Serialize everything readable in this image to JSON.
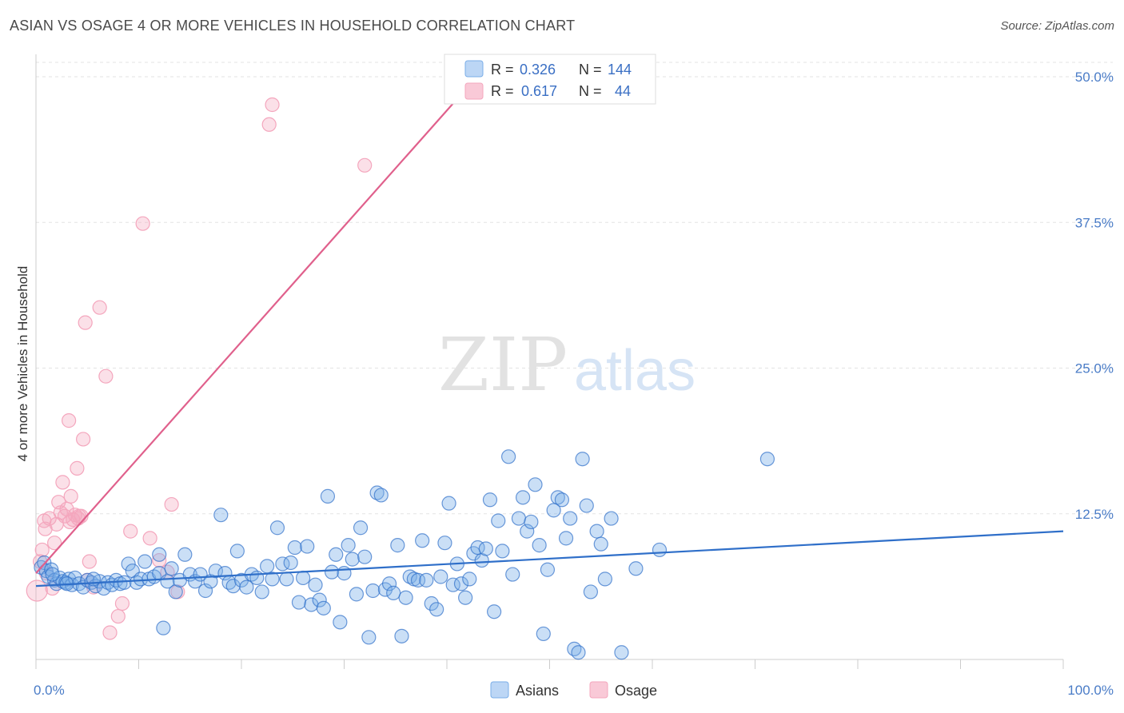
{
  "title": "ASIAN VS OSAGE 4 OR MORE VEHICLES IN HOUSEHOLD CORRELATION CHART",
  "source": "Source: ZipAtlas.com",
  "watermark": {
    "zip": "ZIP",
    "atlas": "atlas"
  },
  "colors": {
    "asians": "#7aaee8",
    "asians_line": "#2f6fc9",
    "osage": "#f4a6bd",
    "osage_line": "#e0608c",
    "grid": "#e3e3e3",
    "tick_text": "#4a7cc7"
  },
  "legend_top": {
    "rows": [
      {
        "r_label": "R =",
        "r_value": "0.326",
        "n_label": "N =",
        "n_value": "144"
      },
      {
        "r_label": "R =",
        "r_value": "0.617",
        "n_label": "N =",
        "n_value": "44"
      }
    ]
  },
  "legend_bottom": {
    "asians": "Asians",
    "osage": "Osage"
  },
  "chart_data": {
    "type": "scatter",
    "xlabel": "",
    "ylabel": "4 or more Vehicles in Household",
    "xlim": [
      0,
      100
    ],
    "ylim": [
      0,
      50
    ],
    "x_tick_labels": [
      "0.0%",
      "100.0%"
    ],
    "y_ticks": [
      12.5,
      25.0,
      37.5,
      50.0
    ],
    "y_tick_labels": [
      "12.5%",
      "25.0%",
      "37.5%",
      "50.0%"
    ],
    "grid": "horizontal dashed",
    "legend_position": "top-center",
    "series": [
      {
        "name": "Asians",
        "trend": {
          "x": [
            0,
            100
          ],
          "y": [
            6.3,
            11.0
          ]
        },
        "points": [
          [
            0.5,
            7.9
          ],
          [
            0.8,
            8.3
          ],
          [
            1.0,
            7.6
          ],
          [
            1.2,
            7.1
          ],
          [
            1.5,
            7.7
          ],
          [
            1.8,
            6.8
          ],
          [
            2.0,
            6.5
          ],
          [
            2.3,
            7.0
          ],
          [
            2.6,
            6.7
          ],
          [
            2.9,
            6.6
          ],
          [
            3.2,
            6.9
          ],
          [
            3.5,
            6.4
          ],
          [
            3.8,
            7.0
          ],
          [
            4.2,
            6.5
          ],
          [
            4.6,
            6.2
          ],
          [
            5.0,
            6.8
          ],
          [
            5.4,
            6.6
          ],
          [
            5.8,
            6.3
          ],
          [
            6.2,
            6.7
          ],
          [
            6.6,
            6.1
          ],
          [
            7.0,
            6.6
          ],
          [
            7.4,
            6.4
          ],
          [
            7.8,
            6.8
          ],
          [
            8.2,
            6.5
          ],
          [
            8.6,
            6.6
          ],
          [
            9.0,
            8.2
          ],
          [
            9.4,
            7.6
          ],
          [
            9.8,
            6.6
          ],
          [
            10.2,
            6.9
          ],
          [
            10.6,
            8.4
          ],
          [
            11.0,
            6.9
          ],
          [
            11.5,
            7.1
          ],
          [
            12.0,
            7.4
          ],
          [
            12.4,
            2.7
          ],
          [
            12.8,
            6.7
          ],
          [
            13.2,
            7.8
          ],
          [
            13.6,
            5.8
          ],
          [
            14.0,
            6.8
          ],
          [
            14.5,
            9.0
          ],
          [
            15.0,
            7.3
          ],
          [
            15.5,
            6.7
          ],
          [
            16.0,
            7.3
          ],
          [
            16.5,
            5.9
          ],
          [
            17.0,
            6.7
          ],
          [
            17.5,
            7.6
          ],
          [
            18.0,
            12.4
          ],
          [
            18.4,
            7.4
          ],
          [
            18.8,
            6.6
          ],
          [
            19.2,
            6.3
          ],
          [
            19.6,
            9.3
          ],
          [
            20.0,
            6.8
          ],
          [
            20.5,
            6.2
          ],
          [
            21.0,
            7.3
          ],
          [
            21.5,
            7.0
          ],
          [
            22.0,
            5.8
          ],
          [
            22.5,
            8.0
          ],
          [
            23.0,
            6.9
          ],
          [
            23.5,
            11.3
          ],
          [
            24.0,
            8.2
          ],
          [
            24.4,
            6.9
          ],
          [
            24.8,
            8.3
          ],
          [
            25.2,
            9.6
          ],
          [
            25.6,
            4.9
          ],
          [
            26.0,
            7.0
          ],
          [
            26.4,
            9.7
          ],
          [
            26.8,
            4.7
          ],
          [
            27.2,
            6.4
          ],
          [
            27.6,
            5.1
          ],
          [
            28.0,
            4.4
          ],
          [
            28.4,
            14.0
          ],
          [
            28.8,
            7.5
          ],
          [
            29.2,
            9.0
          ],
          [
            29.6,
            3.2
          ],
          [
            30.0,
            7.4
          ],
          [
            30.4,
            9.8
          ],
          [
            30.8,
            8.6
          ],
          [
            31.2,
            5.6
          ],
          [
            31.6,
            11.3
          ],
          [
            32.0,
            8.8
          ],
          [
            32.4,
            1.9
          ],
          [
            32.8,
            5.9
          ],
          [
            33.2,
            14.3
          ],
          [
            33.6,
            14.1
          ],
          [
            34.0,
            6.0
          ],
          [
            34.4,
            6.5
          ],
          [
            34.8,
            5.7
          ],
          [
            35.2,
            9.8
          ],
          [
            35.6,
            2.0
          ],
          [
            36.0,
            5.3
          ],
          [
            36.4,
            7.1
          ],
          [
            36.8,
            6.9
          ],
          [
            37.2,
            6.8
          ],
          [
            37.6,
            10.2
          ],
          [
            38.0,
            6.8
          ],
          [
            38.5,
            4.8
          ],
          [
            39.0,
            4.3
          ],
          [
            39.4,
            7.1
          ],
          [
            39.8,
            10.0
          ],
          [
            40.2,
            13.4
          ],
          [
            40.6,
            6.4
          ],
          [
            41.0,
            8.2
          ],
          [
            41.4,
            6.5
          ],
          [
            41.8,
            5.3
          ],
          [
            42.2,
            6.9
          ],
          [
            42.6,
            9.1
          ],
          [
            43.0,
            9.6
          ],
          [
            43.4,
            8.5
          ],
          [
            43.8,
            9.5
          ],
          [
            44.2,
            13.7
          ],
          [
            44.6,
            4.1
          ],
          [
            45.0,
            11.9
          ],
          [
            45.4,
            9.3
          ],
          [
            46.0,
            17.4
          ],
          [
            46.4,
            7.3
          ],
          [
            47.0,
            12.1
          ],
          [
            47.4,
            13.9
          ],
          [
            47.8,
            11.0
          ],
          [
            48.2,
            11.8
          ],
          [
            48.6,
            15.0
          ],
          [
            49.0,
            9.8
          ],
          [
            49.4,
            2.2
          ],
          [
            49.8,
            7.7
          ],
          [
            50.4,
            12.8
          ],
          [
            50.8,
            13.9
          ],
          [
            51.2,
            13.7
          ],
          [
            51.6,
            10.4
          ],
          [
            52.0,
            12.1
          ],
          [
            52.4,
            0.9
          ],
          [
            52.8,
            0.6
          ],
          [
            53.2,
            17.2
          ],
          [
            53.6,
            13.2
          ],
          [
            54.0,
            5.8
          ],
          [
            54.6,
            11.0
          ],
          [
            55.0,
            9.9
          ],
          [
            55.4,
            6.9
          ],
          [
            56.0,
            12.1
          ],
          [
            57.0,
            0.6
          ],
          [
            58.4,
            7.8
          ],
          [
            60.7,
            9.4
          ],
          [
            71.2,
            17.2
          ],
          [
            1.6,
            7.3
          ],
          [
            3.0,
            6.5
          ],
          [
            5.6,
            6.9
          ],
          [
            12.0,
            9.0
          ]
        ]
      },
      {
        "name": "Osage",
        "trend": {
          "x": [
            0,
            40.6
          ],
          "y": [
            7.4,
            47.7
          ]
        },
        "points": [
          [
            0.1,
            5.9
          ],
          [
            0.4,
            8.4
          ],
          [
            0.6,
            9.4
          ],
          [
            0.8,
            11.9
          ],
          [
            0.9,
            11.2
          ],
          [
            1.0,
            7.4
          ],
          [
            1.3,
            12.1
          ],
          [
            1.6,
            6.1
          ],
          [
            1.8,
            10.0
          ],
          [
            2.0,
            11.6
          ],
          [
            2.2,
            13.5
          ],
          [
            2.4,
            12.6
          ],
          [
            2.6,
            15.2
          ],
          [
            2.8,
            12.3
          ],
          [
            3.0,
            12.9
          ],
          [
            3.2,
            20.5
          ],
          [
            3.4,
            14.0
          ],
          [
            3.6,
            12.0
          ],
          [
            3.8,
            12.4
          ],
          [
            4.0,
            16.4
          ],
          [
            4.2,
            12.3
          ],
          [
            4.4,
            12.3
          ],
          [
            4.6,
            18.9
          ],
          [
            4.8,
            28.9
          ],
          [
            5.0,
            6.8
          ],
          [
            5.2,
            8.4
          ],
          [
            5.6,
            6.2
          ],
          [
            6.2,
            30.2
          ],
          [
            6.8,
            24.3
          ],
          [
            7.2,
            2.3
          ],
          [
            8.0,
            3.7
          ],
          [
            8.4,
            4.8
          ],
          [
            9.2,
            11.0
          ],
          [
            10.4,
            37.4
          ],
          [
            11.1,
            10.4
          ],
          [
            12.0,
            8.5
          ],
          [
            13.2,
            13.3
          ],
          [
            13.8,
            5.8
          ],
          [
            22.7,
            45.9
          ],
          [
            23.0,
            47.6
          ],
          [
            32.0,
            42.4
          ],
          [
            12.8,
            7.5
          ],
          [
            4.1,
            12.1
          ],
          [
            3.3,
            11.8
          ]
        ]
      }
    ]
  }
}
